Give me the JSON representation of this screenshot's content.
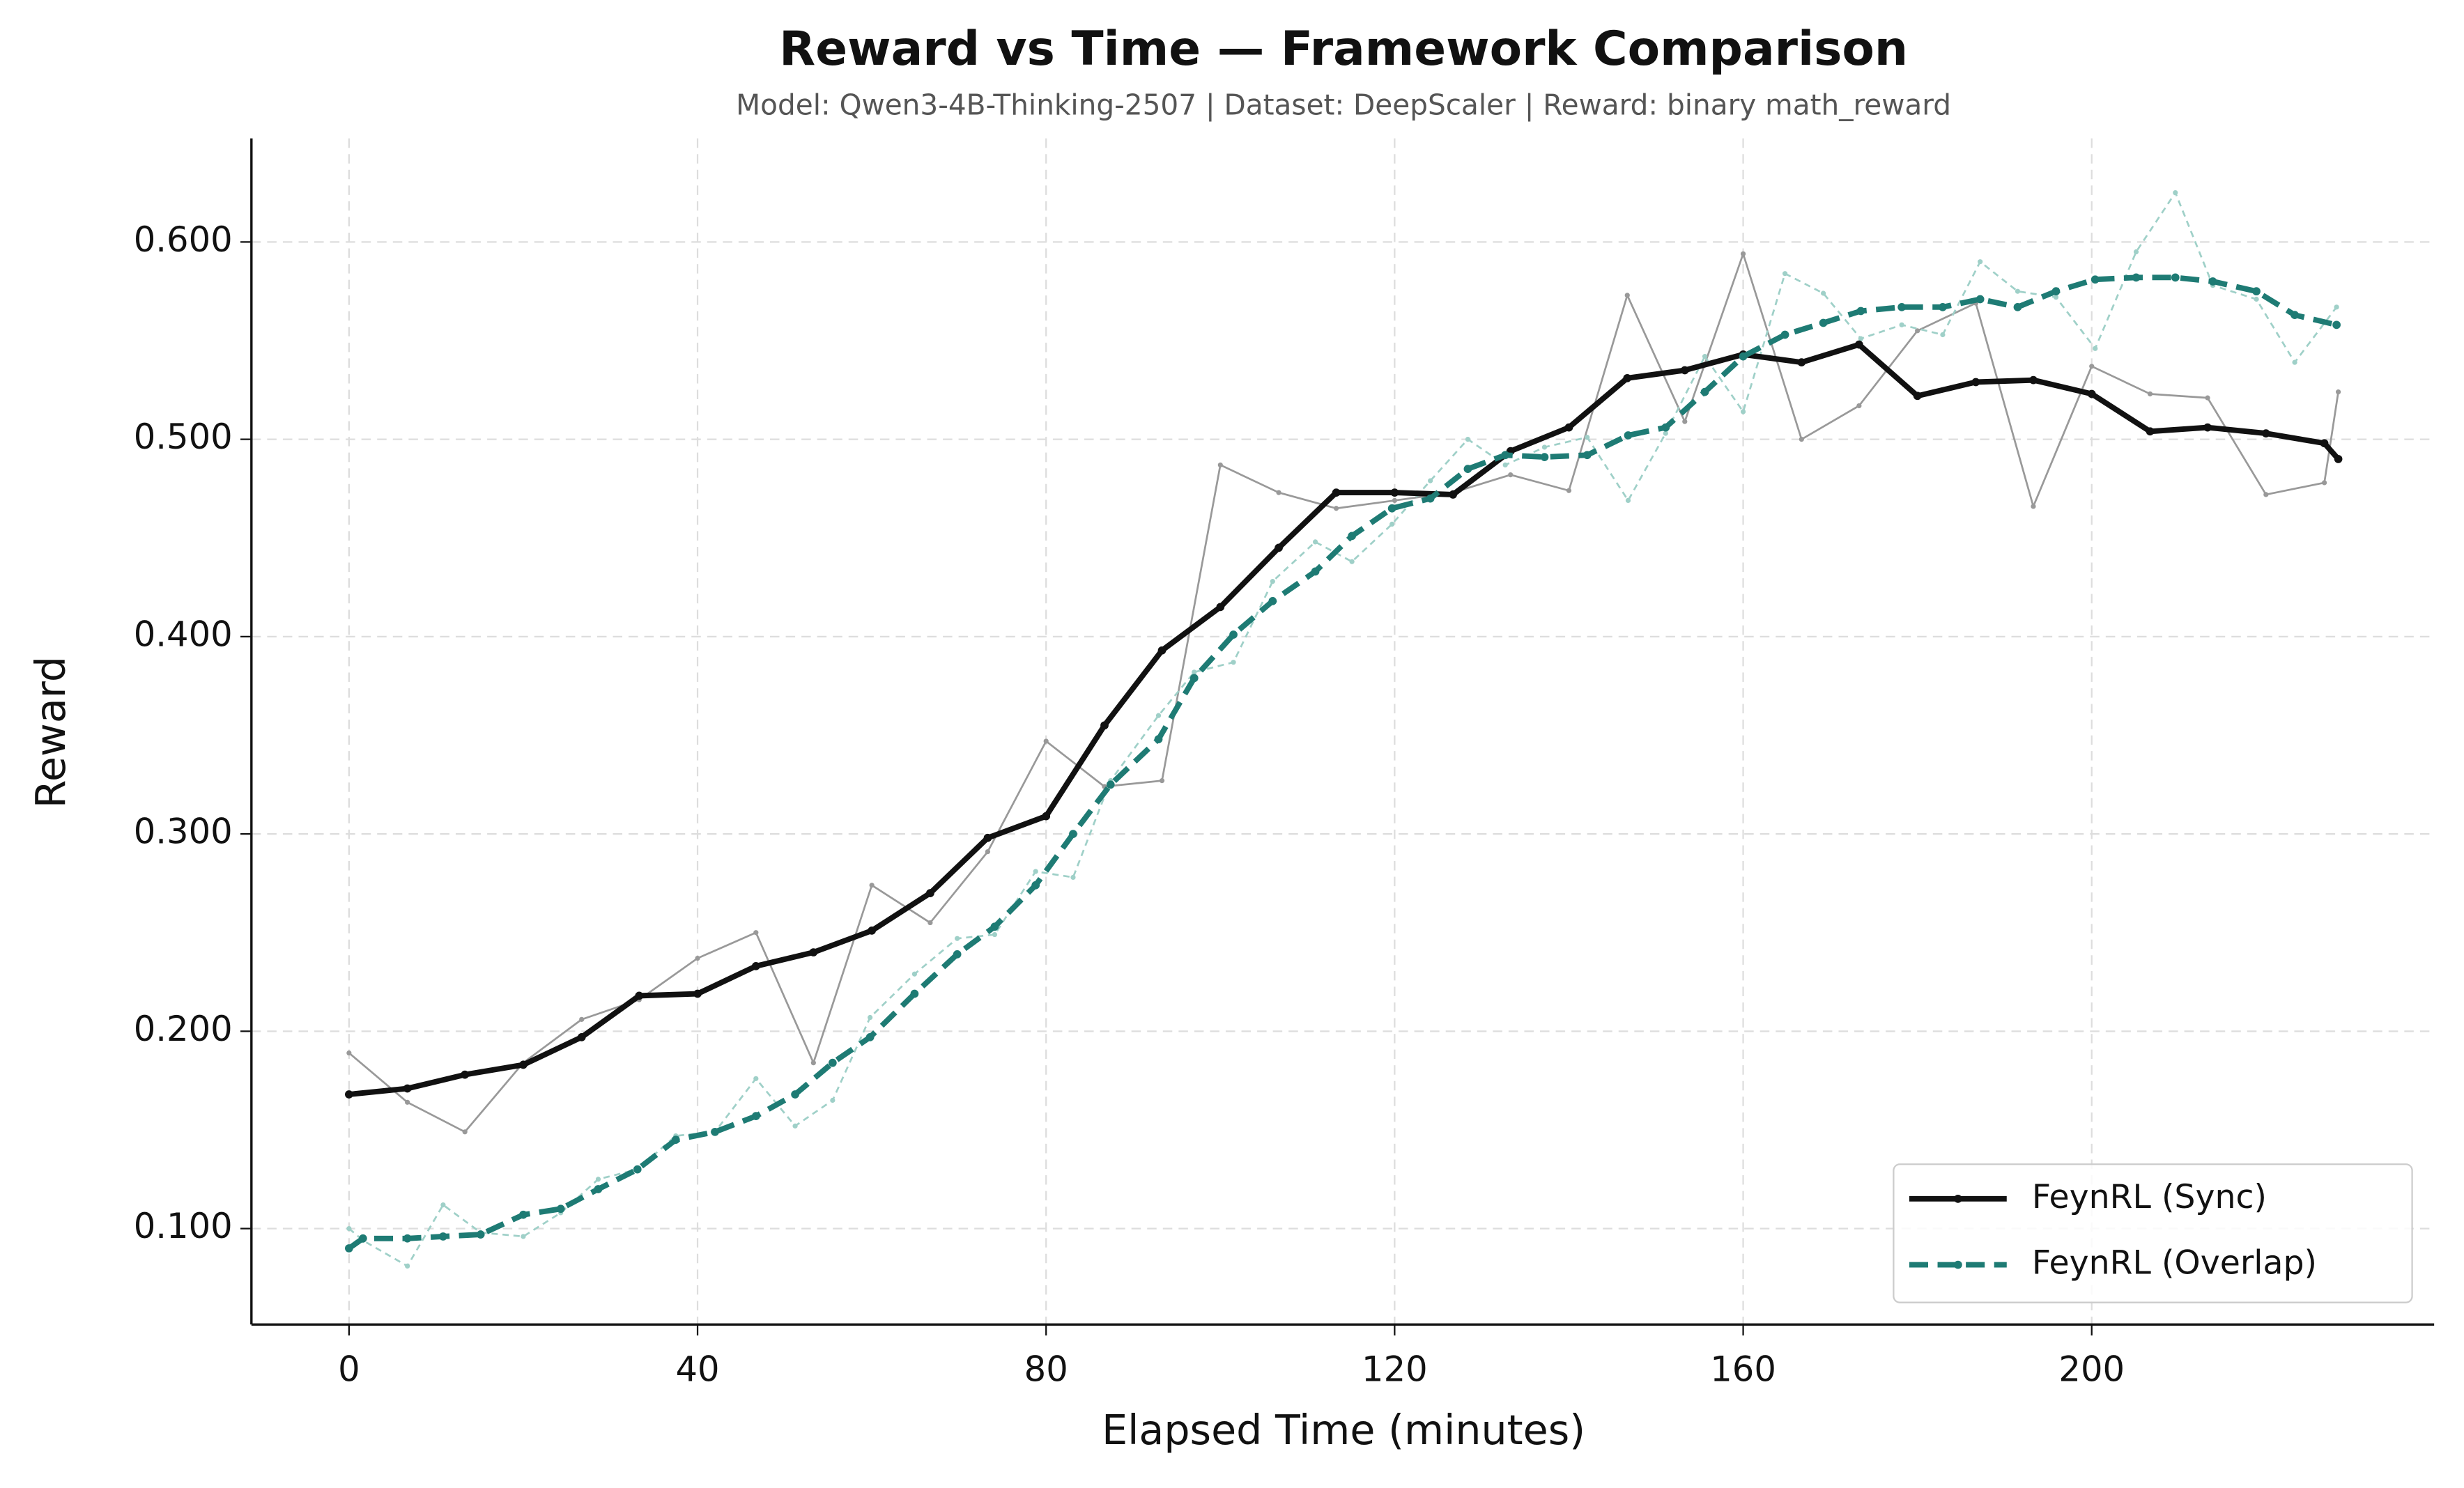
{
  "chart_data": {
    "type": "line",
    "title": "Reward vs Time — Framework Comparison",
    "subtitle": "Model: Qwen3-4B-Thinking-2507  |  Dataset: DeepScaler  |  Reward: binary math_reward",
    "x_label": "Elapsed Time (minutes)",
    "y_label": "Reward",
    "xlim": [
      -11.2,
      239.3
    ],
    "ylim": [
      0.0514,
      0.6525
    ],
    "xticks": [
      0,
      40,
      80,
      120,
      160,
      200
    ],
    "yticks": [
      {
        "value": 0.1,
        "label": "0.100"
      },
      {
        "value": 0.2,
        "label": "0.200"
      },
      {
        "value": 0.3,
        "label": "0.300"
      },
      {
        "value": 0.4,
        "label": "0.400"
      },
      {
        "value": 0.5,
        "label": "0.500"
      },
      {
        "value": 0.6,
        "label": "0.600"
      }
    ],
    "grid": true,
    "legend": "lower right",
    "series": [
      {
        "name": "FeynRL (Sync)",
        "color": "#111111",
        "raw_color": "#999999",
        "dash": false,
        "x": [
          0,
          6.7,
          13.3,
          20,
          26.7,
          33.3,
          40,
          46.7,
          53.3,
          60,
          66.7,
          73.3,
          80,
          86.7,
          93.3,
          100,
          106.7,
          113.3,
          120,
          126.7,
          133.3,
          140,
          146.7,
          153.3,
          160,
          166.7,
          173.3,
          180,
          186.7,
          193.3,
          200,
          206.7,
          213.3,
          220,
          226.7,
          228.3
        ],
        "values": [
          0.168,
          0.171,
          0.178,
          0.183,
          0.197,
          0.218,
          0.219,
          0.233,
          0.24,
          0.251,
          0.27,
          0.298,
          0.309,
          0.355,
          0.393,
          0.415,
          0.445,
          0.473,
          0.473,
          0.472,
          0.494,
          0.506,
          0.531,
          0.535,
          0.543,
          0.539,
          0.548,
          0.522,
          0.529,
          0.53,
          0.523,
          0.504,
          0.506,
          0.503,
          0.498,
          0.49
        ],
        "raw_values": [
          0.189,
          0.164,
          0.149,
          0.184,
          0.206,
          0.216,
          0.237,
          0.25,
          0.184,
          0.274,
          0.255,
          0.291,
          0.347,
          0.324,
          0.327,
          0.487,
          0.473,
          0.465,
          0.469,
          0.473,
          0.482,
          0.474,
          0.573,
          0.509,
          0.594,
          0.5,
          0.517,
          0.555,
          0.569,
          0.466,
          0.537,
          0.523,
          0.521,
          0.472,
          0.478,
          0.524
        ]
      },
      {
        "name": "FeynRL (Overlap)",
        "color": "#1e7b74",
        "raw_color": "#9fd0c8",
        "dash": true,
        "x": [
          0,
          1.6,
          6.7,
          10.8,
          15.1,
          20.0,
          24.3,
          28.6,
          33.1,
          37.5,
          42.0,
          46.7,
          51.2,
          55.5,
          59.8,
          64.9,
          69.8,
          74.1,
          78.8,
          83.1,
          87.4,
          92.9,
          97.0,
          101.5,
          106.0,
          110.9,
          115.1,
          119.7,
          124.1,
          128.4,
          132.7,
          137.2,
          142.1,
          146.8,
          151.1,
          155.6,
          160.0,
          164.8,
          169.2,
          173.5,
          178.2,
          182.9,
          187.2,
          191.5,
          195.9,
          200.4,
          205.1,
          209.6,
          213.9,
          218.9,
          223.3,
          228.1
        ],
        "values": [
          0.09,
          0.095,
          0.095,
          0.096,
          0.097,
          0.107,
          0.11,
          0.12,
          0.13,
          0.145,
          0.149,
          0.157,
          0.168,
          0.184,
          0.197,
          0.219,
          0.239,
          0.253,
          0.274,
          0.3,
          0.325,
          0.348,
          0.379,
          0.401,
          0.418,
          0.433,
          0.451,
          0.465,
          0.47,
          0.485,
          0.492,
          0.491,
          0.492,
          0.502,
          0.506,
          0.524,
          0.542,
          0.553,
          0.559,
          0.565,
          0.567,
          0.567,
          0.571,
          0.567,
          0.575,
          0.581,
          0.582,
          0.582,
          0.58,
          0.575,
          0.563,
          0.558
        ],
        "raw_values": [
          0.1,
          0.094,
          0.081,
          0.112,
          0.098,
          0.096,
          0.108,
          0.125,
          0.13,
          0.147,
          0.149,
          0.176,
          0.152,
          0.165,
          0.207,
          0.229,
          0.247,
          0.249,
          0.281,
          0.278,
          0.327,
          0.36,
          0.382,
          0.387,
          0.428,
          0.448,
          0.438,
          0.457,
          0.479,
          0.5,
          0.487,
          0.496,
          0.501,
          0.469,
          0.503,
          0.542,
          0.514,
          0.584,
          0.574,
          0.551,
          0.558,
          0.553,
          0.59,
          0.575,
          0.572,
          0.546,
          0.595,
          0.625,
          0.578,
          0.571,
          0.539,
          0.567
        ]
      }
    ]
  }
}
